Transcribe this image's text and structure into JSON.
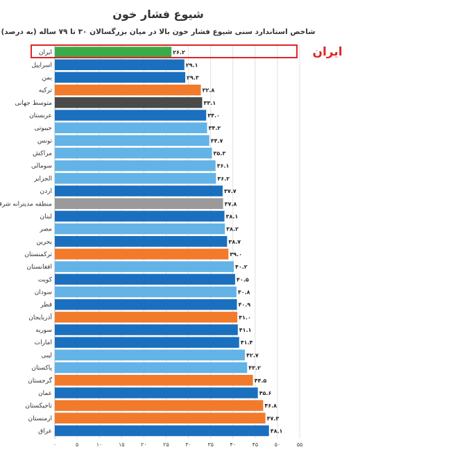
{
  "chart_data": {
    "type": "bar",
    "orientation": "horizontal",
    "title": "شیوع فشار خون",
    "subtitle": "شاخص استاندارد سنی شیوع فشار خون بالا در میان بزرگسالان ۳۰ تا ۷۹ ساله (به درصد)",
    "xlim": [
      0,
      55
    ],
    "xticks": [
      "۰",
      "۵",
      "۱۰",
      "۱۵",
      "۲۰",
      "۲۵",
      "۳۰",
      "۳۵",
      "۴۰",
      "۴۵",
      "۵۰",
      "۵۵"
    ],
    "grid": true,
    "categories": [
      "ایران",
      "اسراییل",
      "یمن",
      "ترکیه",
      "متوسط جهانی",
      "عربستان",
      "جیبوتی",
      "تونس",
      "مراکش",
      "سومالی",
      "الجزایر",
      "اردن",
      "منطقه مدیترانه شرقی",
      "لبنان",
      "مصر",
      "بحرین",
      "ترکمنستان",
      "افغانستان",
      "کویت",
      "سودان",
      "قطر",
      "آذربایجان",
      "سوریه",
      "امارات",
      "لیبی",
      "پاکستان",
      "گرجستان",
      "عمان",
      "تاجیکستان",
      "ارمنستان",
      "عراق"
    ],
    "values": [
      26.2,
      29.1,
      29.3,
      32.8,
      33.1,
      34.0,
      34.2,
      34.7,
      35.3,
      36.1,
      36.2,
      37.7,
      37.8,
      38.1,
      38.2,
      38.7,
      39.0,
      40.2,
      40.5,
      40.8,
      40.9,
      41.0,
      41.1,
      41.4,
      42.7,
      43.2,
      44.5,
      45.6,
      46.8,
      47.3,
      48.1
    ],
    "value_labels": [
      "۲۶.۲",
      "۲۹.۱",
      "۲۹.۳",
      "۳۲.۸",
      "۳۳.۱",
      "۳۴.۰",
      "۳۴.۲",
      "۳۴.۷",
      "۳۵.۳",
      "۳۶.۱",
      "۳۶.۲",
      "۳۷.۷",
      "۳۷.۸",
      "۳۸.۱",
      "۳۸.۲",
      "۳۸.۷",
      "۳۹.۰",
      "۴۰.۲",
      "۴۰.۵",
      "۴۰.۸",
      "۴۰.۹",
      "۴۱.۰",
      "۴۱.۱",
      "۴۱.۴",
      "۴۲.۷",
      "۴۳.۲",
      "۴۴.۵",
      "۴۵.۶",
      "۴۶.۸",
      "۴۷.۳",
      "۴۸.۱"
    ],
    "bar_colors": [
      "#3daa4a",
      "#1b6fbf",
      "#1b6fbf",
      "#f27a2b",
      "#4a4a4a",
      "#1b6fbf",
      "#63b3e6",
      "#63b3e6",
      "#63b3e6",
      "#63b3e6",
      "#63b3e6",
      "#1b6fbf",
      "#9a9a9a",
      "#1b6fbf",
      "#63b3e6",
      "#1b6fbf",
      "#f27a2b",
      "#63b3e6",
      "#1b6fbf",
      "#63b3e6",
      "#1b6fbf",
      "#f27a2b",
      "#1b6fbf",
      "#1b6fbf",
      "#63b3e6",
      "#63b3e6",
      "#f27a2b",
      "#1b6fbf",
      "#f27a2b",
      "#f27a2b",
      "#1b6fbf"
    ],
    "highlight": {
      "category": "ایران",
      "callout_text": "ایران",
      "color": "#e02424"
    }
  },
  "colors": {
    "grid": "#e0e0e0",
    "axis": "#bbbbbb",
    "highlight_box": "#e02424"
  }
}
